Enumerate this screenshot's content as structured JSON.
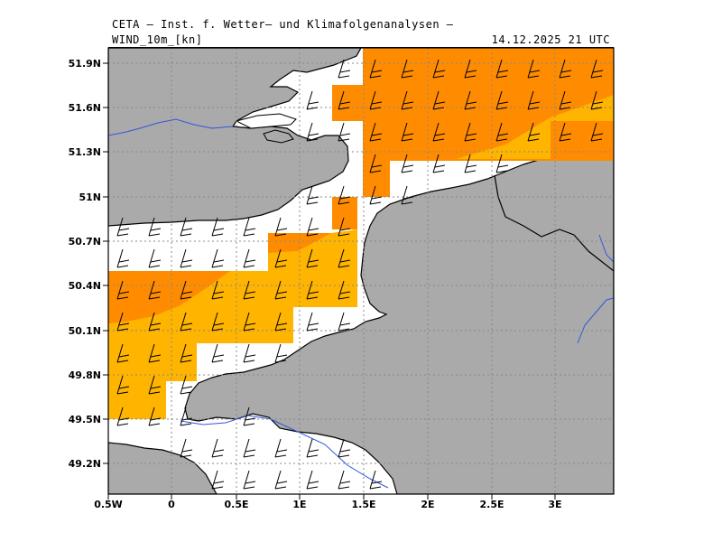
{
  "header": {
    "title": "CETA — Inst. f. Wetter— und Klimafolgenanalysen —",
    "field": "WIND_10m_[kn]",
    "valid_time": "14.12.2025 21 UTC"
  },
  "axes": {
    "lat_labels": [
      "51.9N",
      "51.6N",
      "51.3N",
      "51N",
      "50.7N",
      "50.4N",
      "50.1N",
      "49.8N",
      "49.5N",
      "49.2N"
    ],
    "lon_labels": [
      "0.5W",
      "0",
      "0.5E",
      "1E",
      "1.5E",
      "2E",
      "2.5E",
      "3E"
    ]
  },
  "colors": {
    "land": "#aaaaaa",
    "sea": "#ffffff",
    "wind_band_low": "#ffb400",
    "wind_band_high": "#ff8c00",
    "rivers": "#3355dd",
    "coast": "#000000",
    "grid": "#888888"
  }
}
